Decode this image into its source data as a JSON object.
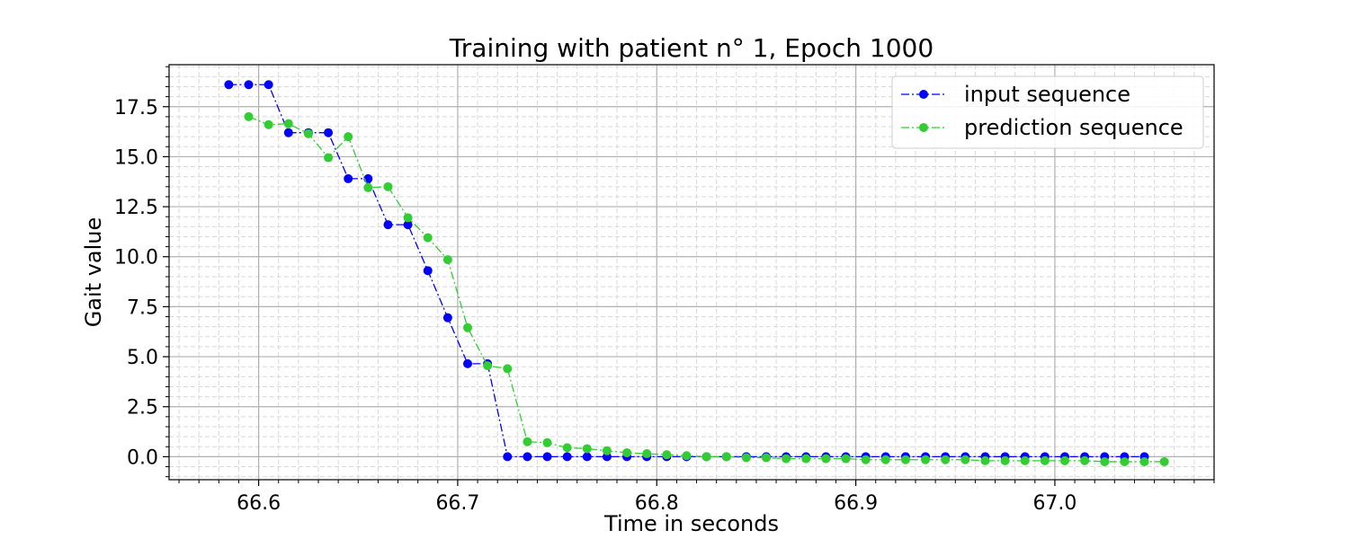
{
  "chart_data": {
    "type": "line",
    "title": "Training with patient n° 1, Epoch 1000",
    "xlabel": "Time in seconds",
    "ylabel": "Gait value",
    "xlim": [
      66.555,
      67.08
    ],
    "ylim": [
      -1.15,
      19.6
    ],
    "x_ticks": [
      66.6,
      66.7,
      66.8,
      66.9,
      67.0
    ],
    "x_tick_labels": [
      "66.6",
      "66.7",
      "66.8",
      "66.9",
      "67.0"
    ],
    "y_ticks": [
      0.0,
      2.5,
      5.0,
      7.5,
      10.0,
      12.5,
      15.0,
      17.5
    ],
    "y_tick_labels": [
      "0.0",
      "2.5",
      "5.0",
      "7.5",
      "10.0",
      "12.5",
      "15.0",
      "17.5"
    ],
    "grid": "major and minor",
    "legend_position": "top-right",
    "series": [
      {
        "name": "input sequence",
        "color": "#0000ff",
        "linestyle": "dashdot",
        "marker": "circle",
        "x": [
          66.585,
          66.595,
          66.605,
          66.615,
          66.625,
          66.635,
          66.645,
          66.655,
          66.665,
          66.675,
          66.685,
          66.695,
          66.705,
          66.715,
          66.725,
          66.735,
          66.745,
          66.755,
          66.765,
          66.775,
          66.785,
          66.795,
          66.805,
          66.815,
          66.825,
          66.835,
          66.845,
          66.855,
          66.865,
          66.875,
          66.885,
          66.895,
          66.905,
          66.915,
          66.925,
          66.935,
          66.945,
          66.955,
          66.965,
          66.975,
          66.985,
          66.995,
          67.005,
          67.015,
          67.025,
          67.035,
          67.045
        ],
        "y": [
          18.6,
          18.6,
          18.6,
          16.2,
          16.2,
          16.2,
          13.9,
          13.9,
          11.6,
          11.6,
          9.3,
          6.95,
          4.65,
          4.65,
          0.0,
          0.0,
          0.0,
          0.0,
          0.0,
          0.0,
          0.0,
          0.0,
          0.0,
          0.0,
          0.0,
          0.0,
          0.0,
          0.0,
          0.0,
          0.0,
          0.0,
          0.0,
          0.0,
          0.0,
          0.0,
          0.0,
          0.0,
          0.0,
          0.0,
          0.0,
          0.0,
          0.0,
          0.0,
          0.0,
          0.0,
          0.0,
          0.0
        ]
      },
      {
        "name": "prediction sequence",
        "color": "#32cd32",
        "linestyle": "dashdot",
        "marker": "circle",
        "x": [
          66.595,
          66.605,
          66.615,
          66.625,
          66.635,
          66.645,
          66.655,
          66.665,
          66.675,
          66.685,
          66.695,
          66.705,
          66.715,
          66.725,
          66.735,
          66.745,
          66.755,
          66.765,
          66.775,
          66.785,
          66.795,
          66.805,
          66.815,
          66.825,
          66.835,
          66.845,
          66.855,
          66.865,
          66.875,
          66.885,
          66.895,
          66.905,
          66.915,
          66.925,
          66.935,
          66.945,
          66.955,
          66.965,
          66.975,
          66.985,
          66.995,
          67.005,
          67.015,
          67.025,
          67.035,
          67.045,
          67.055
        ],
        "y": [
          17.0,
          16.6,
          16.65,
          16.15,
          14.95,
          16.0,
          13.45,
          13.5,
          11.95,
          10.95,
          9.85,
          6.45,
          4.55,
          4.4,
          0.75,
          0.7,
          0.45,
          0.4,
          0.3,
          0.2,
          0.15,
          0.1,
          0.05,
          0.0,
          0.0,
          -0.05,
          -0.05,
          -0.1,
          -0.1,
          -0.1,
          -0.1,
          -0.15,
          -0.15,
          -0.15,
          -0.15,
          -0.15,
          -0.15,
          -0.2,
          -0.2,
          -0.2,
          -0.2,
          -0.2,
          -0.2,
          -0.25,
          -0.25,
          -0.25,
          -0.25
        ]
      }
    ]
  }
}
